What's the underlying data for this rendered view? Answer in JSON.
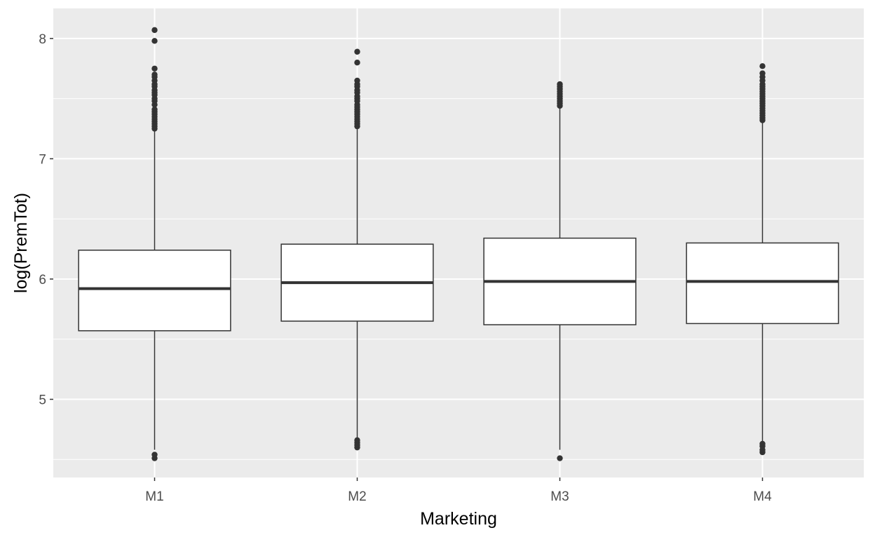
{
  "chart_data": {
    "type": "boxplot",
    "title": "",
    "xlabel": "Marketing",
    "ylabel": "log(PremTot)",
    "ylim": [
      4.35,
      8.25
    ],
    "yticks": [
      5,
      6,
      7,
      8
    ],
    "grid": true,
    "categories": [
      "M1",
      "M2",
      "M3",
      "M4"
    ],
    "boxes": [
      {
        "category": "M1",
        "min": 4.58,
        "q1": 5.57,
        "median": 5.92,
        "q3": 6.24,
        "max": 7.24,
        "outliers": [
          4.51,
          4.54,
          7.25,
          7.27,
          7.29,
          7.31,
          7.33,
          7.35,
          7.37,
          7.39,
          7.41,
          7.45,
          7.48,
          7.5,
          7.53,
          7.55,
          7.57,
          7.6,
          7.62,
          7.65,
          7.68,
          7.7,
          7.75,
          7.98,
          8.07
        ]
      },
      {
        "category": "M2",
        "min": 4.68,
        "q1": 5.65,
        "median": 5.97,
        "q3": 6.29,
        "max": 7.26,
        "outliers": [
          4.6,
          4.62,
          4.64,
          4.66,
          7.27,
          7.29,
          7.31,
          7.33,
          7.35,
          7.37,
          7.39,
          7.41,
          7.43,
          7.45,
          7.48,
          7.5,
          7.52,
          7.55,
          7.57,
          7.6,
          7.62,
          7.65,
          7.8,
          7.89
        ]
      },
      {
        "category": "M3",
        "min": 4.58,
        "q1": 5.62,
        "median": 5.98,
        "q3": 6.34,
        "max": 7.43,
        "outliers": [
          4.51,
          7.44,
          7.46,
          7.48,
          7.5,
          7.52,
          7.54,
          7.56,
          7.58,
          7.6,
          7.62
        ]
      },
      {
        "category": "M4",
        "min": 4.64,
        "q1": 5.63,
        "median": 5.98,
        "q3": 6.3,
        "max": 7.31,
        "outliers": [
          4.56,
          4.58,
          4.61,
          4.63,
          7.32,
          7.34,
          7.36,
          7.38,
          7.4,
          7.42,
          7.44,
          7.46,
          7.48,
          7.5,
          7.52,
          7.54,
          7.56,
          7.58,
          7.6,
          7.62,
          7.65,
          7.68,
          7.71,
          7.77
        ]
      }
    ],
    "colors": {
      "panel_bg": "#ebebeb",
      "grid_major": "#ffffff",
      "box_fill": "#ffffff",
      "box_stroke": "#333333",
      "outlier": "#333333",
      "tick_text": "#4d4d4d",
      "axis_title": "#000000"
    }
  }
}
